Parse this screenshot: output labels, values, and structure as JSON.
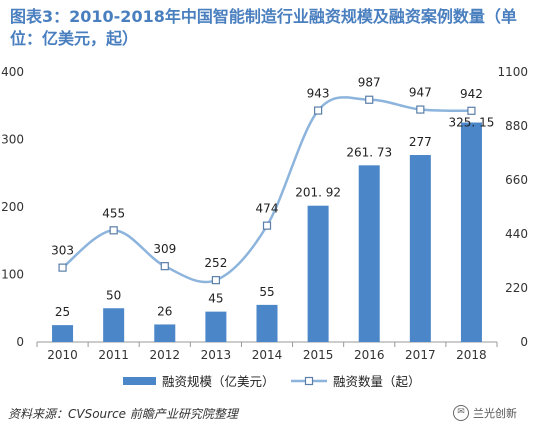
{
  "title": "图表3：2010-2018年中国智能制造行业融资规模及融资案例数量（单位：亿美元，起）",
  "source": "资料来源：CVSource 前瞻产业研究院整理",
  "watermark": {
    "text": "兰光创新",
    "icon": "wechat-icon"
  },
  "colors": {
    "bar": "#4a86c8",
    "line": "#8cb4dc",
    "marker_fill": "#ffffff",
    "marker_stroke": "#5a7ea8",
    "title": "#4a7fbf"
  },
  "chart_data": {
    "type": "bar",
    "categories": [
      "2010",
      "2011",
      "2012",
      "2013",
      "2014",
      "2015",
      "2016",
      "2017",
      "2018"
    ],
    "series": [
      {
        "name": "融资规模（亿美元）",
        "type": "bar",
        "axis": "left",
        "values": [
          25,
          50,
          26,
          45,
          55,
          201.92,
          261.73,
          277,
          325.15
        ],
        "labels": [
          "25",
          "50",
          "26",
          "45",
          "55",
          "201. 92",
          "261. 73",
          "277",
          "325. 15"
        ]
      },
      {
        "name": "融资数量（起）",
        "type": "line",
        "axis": "right",
        "values": [
          303,
          455,
          309,
          252,
          474,
          943,
          987,
          947,
          942
        ],
        "labels": [
          "303",
          "455",
          "309",
          "252",
          "474",
          "943",
          "987",
          "947",
          "942"
        ]
      }
    ],
    "y_left": {
      "min": 0,
      "max": 400,
      "ticks": [
        "0",
        "100",
        "200",
        "300",
        "400"
      ]
    },
    "y_right": {
      "min": 0,
      "max": 1100,
      "ticks": [
        "0",
        "220",
        "440",
        "660",
        "880",
        "1100"
      ]
    },
    "grid": false,
    "legend": "bottom"
  }
}
